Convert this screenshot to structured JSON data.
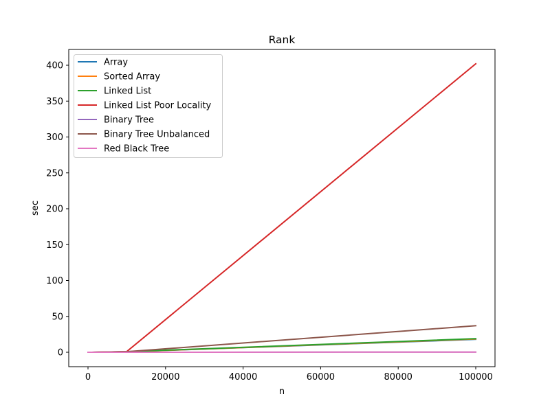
{
  "chart_data": {
    "type": "line",
    "title": "Rank",
    "xlabel": "n",
    "ylabel": "sec",
    "xlim": [
      -5000,
      105000
    ],
    "ylim": [
      -20,
      422
    ],
    "x_ticks": [
      0,
      20000,
      40000,
      60000,
      80000,
      100000
    ],
    "y_ticks": [
      0,
      50,
      100,
      150,
      200,
      250,
      300,
      350,
      400
    ],
    "grid": false,
    "legend_position": "upper left",
    "x": [
      10,
      100,
      1000,
      10000,
      100000
    ],
    "series": [
      {
        "name": "Array",
        "color": "#1f77b4",
        "values": [
          0,
          0,
          0.02,
          0.6,
          18.0
        ]
      },
      {
        "name": "Sorted Array",
        "color": "#ff7f0e",
        "values": [
          0,
          0,
          0.02,
          0.6,
          18.5
        ]
      },
      {
        "name": "Linked List",
        "color": "#2ca02c",
        "values": [
          0,
          0,
          0.03,
          0.8,
          19.0
        ]
      },
      {
        "name": "Linked List Poor Locality",
        "color": "#d62728",
        "values": [
          0,
          0,
          0.05,
          1.0,
          402.0
        ]
      },
      {
        "name": "Binary Tree",
        "color": "#9467bd",
        "values": [
          0,
          0,
          0,
          0.02,
          0.3
        ]
      },
      {
        "name": "Binary Tree Unbalanced",
        "color": "#8c564b",
        "values": [
          0,
          0,
          0.02,
          0.8,
          37.0
        ]
      },
      {
        "name": "Red Black Tree",
        "color": "#e377c2",
        "values": [
          0,
          0,
          0,
          0.02,
          0.3
        ]
      }
    ]
  }
}
